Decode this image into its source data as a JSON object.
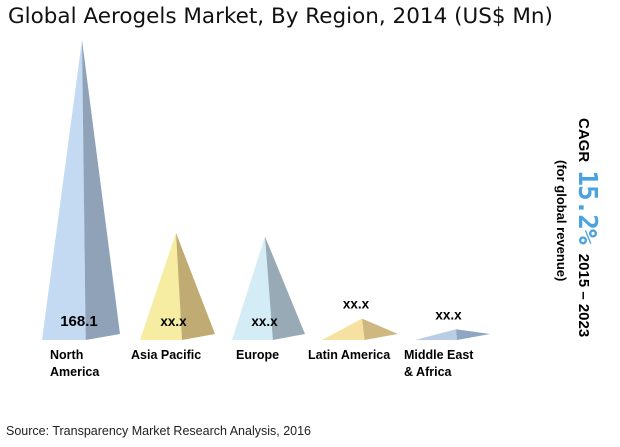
{
  "chart_data": {
    "type": "bar",
    "title": "Global Aerogels Market, By Region, 2014 (US$ Mn)",
    "categories": [
      "North America",
      "Asia Pacific",
      "Europe",
      "Latin America",
      "Middle East & Africa"
    ],
    "data_labels": [
      "168.1",
      "xx.x",
      "xx.x",
      "xx.x",
      "xx.x"
    ],
    "values": [
      168.1,
      60,
      58,
      12,
      6
    ],
    "colors": {
      "North America": {
        "front": "#c4d9f2",
        "side": "#8fa2b8"
      },
      "Asia Pacific": {
        "front": "#f6eda2",
        "side": "#c0ac72"
      },
      "Europe": {
        "front": "#d4ecf6",
        "side": "#98aab6"
      },
      "Latin America": {
        "front": "#f6e1a0",
        "side": "#cfb880"
      },
      "Middle East & Africa": {
        "front": "#b9cde6",
        "side": "#8ea6c2"
      }
    }
  },
  "region_labels": [
    [
      "North",
      "America"
    ],
    [
      "Asia Pacific"
    ],
    [
      "Europe"
    ],
    [
      "Latin America"
    ],
    [
      "Middle East",
      "& Africa"
    ]
  ],
  "cagr": {
    "label": "CAGR",
    "value": "15.2%",
    "period": "2015 – 2023",
    "note": "(for global revenue)"
  },
  "source": "Source: Transparency Market Research Analysis, 2016"
}
